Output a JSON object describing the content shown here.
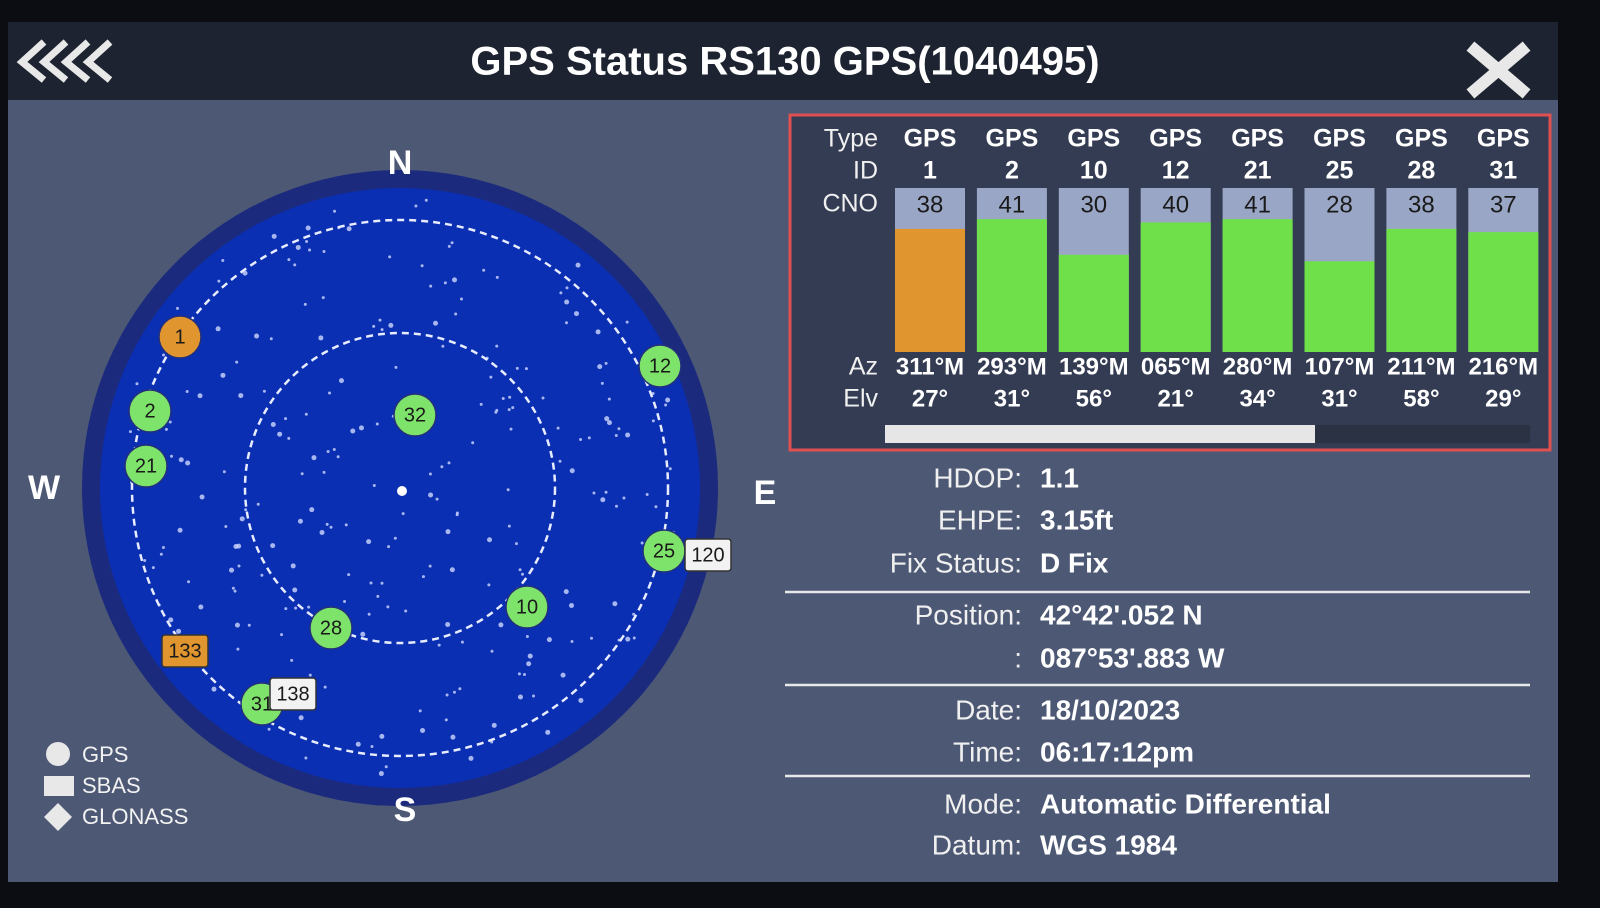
{
  "header": {
    "title": "GPS Status RS130 GPS(1040495)"
  },
  "sky_plot": {
    "compass": {
      "north": "N",
      "south": "S",
      "east": "E",
      "west": "W"
    },
    "satellites": [
      {
        "label": "1",
        "color": "#e0952f"
      },
      {
        "label": "2",
        "color": "#7ee36a"
      },
      {
        "label": "21",
        "color": "#7ee36a"
      },
      {
        "label": "12",
        "color": "#7ee36a"
      },
      {
        "label": "32",
        "color": "#7ee36a"
      },
      {
        "label": "25",
        "color": "#7ee36a"
      },
      {
        "label": "10",
        "color": "#7ee36a"
      },
      {
        "label": "28",
        "color": "#7ee36a"
      },
      {
        "label": "31",
        "color": "#7ee36a"
      },
      {
        "label": "120",
        "color": "#f2f2f2"
      },
      {
        "label": "133",
        "color": "#e0952f"
      },
      {
        "label": "138",
        "color": "#f2f2f2"
      }
    ],
    "legend": [
      "GPS",
      "SBAS",
      "GLONASS"
    ]
  },
  "table": {
    "row_headers": [
      "Type",
      "ID",
      "CNO",
      "Az",
      "Elv"
    ],
    "columns": [
      {
        "type": "GPS",
        "id": "1",
        "cno": 38,
        "az": "311°M",
        "elv": "27°",
        "color": "#e0952f"
      },
      {
        "type": "GPS",
        "id": "2",
        "cno": 41,
        "az": "293°M",
        "elv": "31°",
        "color": "#6fe04a"
      },
      {
        "type": "GPS",
        "id": "10",
        "cno": 30,
        "az": "139°M",
        "elv": "56°",
        "color": "#6fe04a"
      },
      {
        "type": "GPS",
        "id": "12",
        "cno": 40,
        "az": "065°M",
        "elv": "21°",
        "color": "#6fe04a"
      },
      {
        "type": "GPS",
        "id": "21",
        "cno": 41,
        "az": "280°M",
        "elv": "34°",
        "color": "#6fe04a"
      },
      {
        "type": "GPS",
        "id": "25",
        "cno": 28,
        "az": "107°M",
        "elv": "31°",
        "color": "#6fe04a"
      },
      {
        "type": "GPS",
        "id": "28",
        "cno": 38,
        "az": "211°M",
        "elv": "58°",
        "color": "#6fe04a"
      },
      {
        "type": "GPS",
        "id": "31",
        "cno": 37,
        "az": "216°M",
        "elv": "29°",
        "color": "#6fe04a"
      }
    ]
  },
  "info": {
    "rows": [
      {
        "label": "HDOP:",
        "value": "1.1"
      },
      {
        "label": "EHPE:",
        "value": "3.15ft"
      },
      {
        "label": "Fix Status:",
        "value": "D Fix"
      },
      {
        "label": "Position:",
        "value": "42°42'.052 N"
      },
      {
        "label": ":",
        "value": "087°53'.883 W"
      },
      {
        "label": "Date:",
        "value": "18/10/2023"
      },
      {
        "label": "Time:",
        "value": "06:17:12pm"
      },
      {
        "label": "Mode:",
        "value": "Automatic Differential"
      },
      {
        "label": "Datum:",
        "value": "WGS 1984"
      }
    ]
  }
}
